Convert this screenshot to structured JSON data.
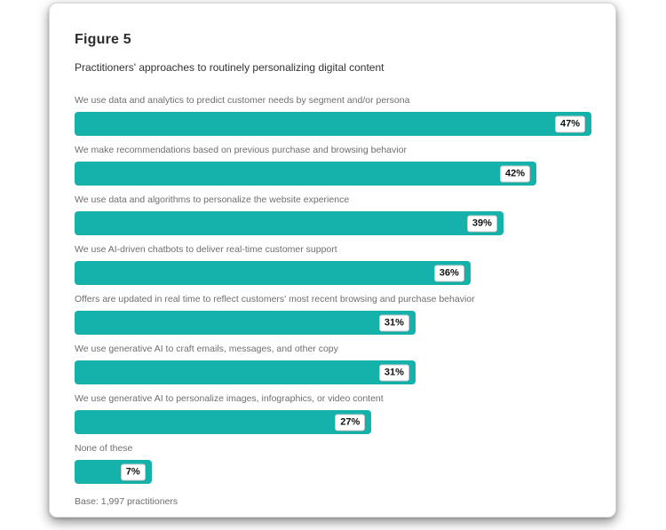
{
  "figure": {
    "title": "Figure 5",
    "subtitle": "Practitioners' approaches to routinely personalizing digital content",
    "base_note": "Base: 1,997 practitioners"
  },
  "chart_data": {
    "type": "bar",
    "orientation": "horizontal",
    "title": "Figure 5",
    "subtitle": "Practitioners' approaches to routinely personalizing digital content",
    "categories": [
      "We use data and analytics to predict customer needs by segment and/or persona",
      "We make recommendations based on previous purchase and browsing behavior",
      "We use data and algorithms to personalize the website experience",
      "We use AI-driven chatbots to deliver real-time customer support",
      "Offers are updated in real time to reflect customers' most recent browsing and purchase behavior",
      "We use generative AI to craft emails, messages, and other copy",
      "We use generative AI to personalize images, infographics, or video content",
      "None of these"
    ],
    "values": [
      47,
      42,
      39,
      36,
      31,
      31,
      27,
      7
    ],
    "value_labels": [
      "47%",
      "42%",
      "39%",
      "36%",
      "31%",
      "31%",
      "27%",
      "7%"
    ],
    "xlim": [
      0,
      47
    ],
    "grid": false,
    "axes_visible": false,
    "legend": "none",
    "bar_color": "#14b2ab",
    "note": "Base: 1,997 practitioners"
  },
  "colors": {
    "bar": "#14b2ab",
    "card_background": "#ffffff",
    "page_background": "#ffffff",
    "title_text": "#2d2d2d",
    "subtitle_text": "#323232",
    "label_text": "#6e6e6e",
    "badge_background": "#ffffff",
    "badge_border": "#cccccc",
    "badge_text": "#111111",
    "card_border": "#dcdcdc"
  }
}
